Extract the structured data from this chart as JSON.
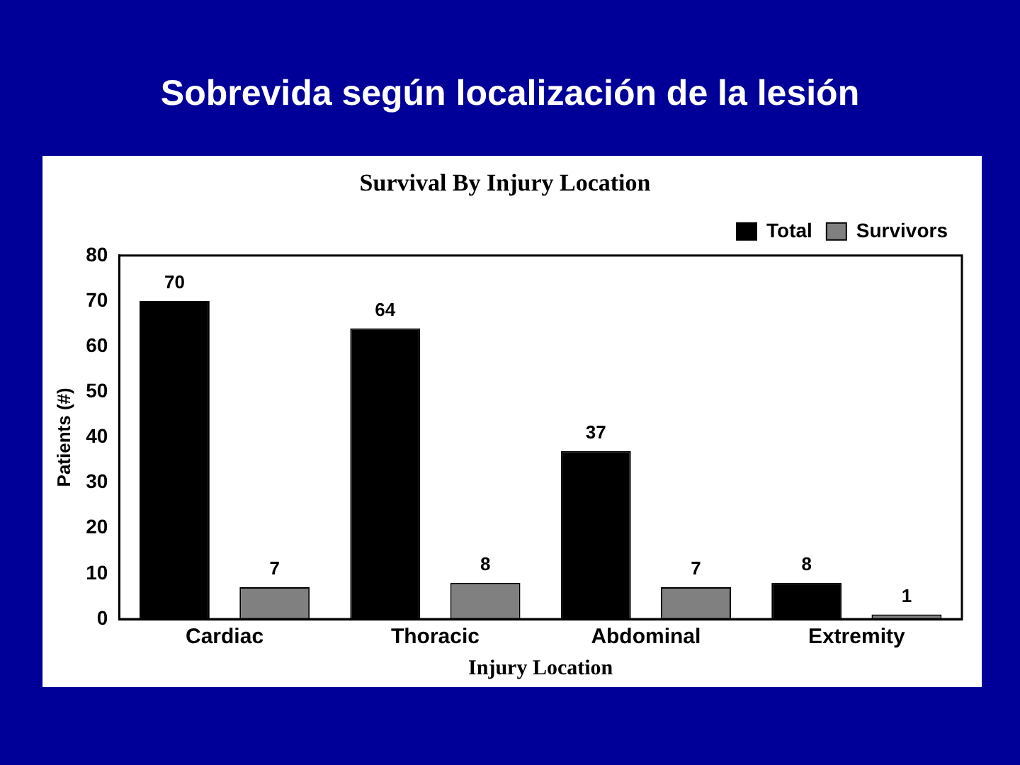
{
  "chart_data": {
    "type": "bar",
    "title": "Sobrevida según localización de la lesión",
    "subtitle": "Survival By Injury Location",
    "xlabel": "Injury Location",
    "ylabel": "Patients (#)",
    "categories": [
      "Cardiac",
      "Thoracic",
      "Abdominal",
      "Extremity"
    ],
    "series": [
      {
        "name": "Total",
        "color": "#000000",
        "values": [
          70,
          64,
          37,
          8
        ]
      },
      {
        "name": "Survivors",
        "color": "#808080",
        "values": [
          7,
          8,
          7,
          1
        ]
      }
    ],
    "ylim": [
      0,
      80
    ],
    "yticks": [
      0,
      10,
      20,
      30,
      40,
      50,
      60,
      70,
      80
    ],
    "data_labels": true,
    "legend": "top right",
    "grid": false
  }
}
